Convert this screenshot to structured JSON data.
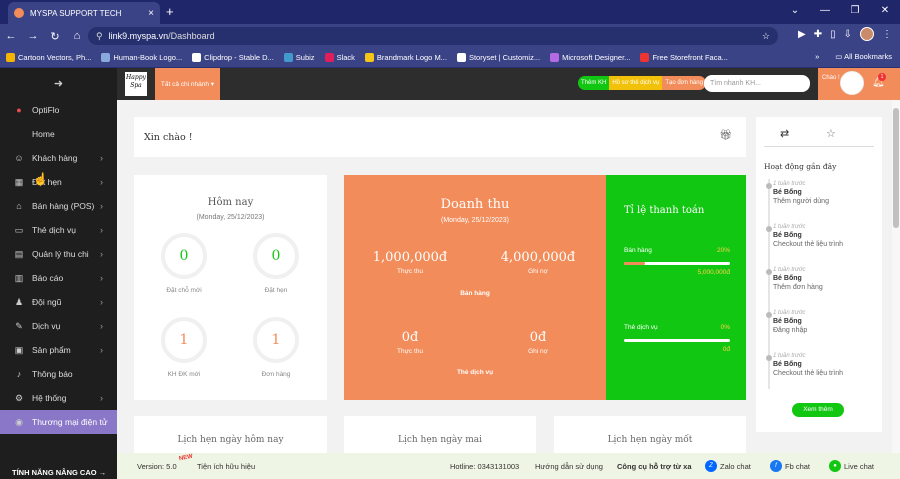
{
  "browser": {
    "tab_title": "MYSPA SUPPORT TECH",
    "url_host": "link9.myspa.vn",
    "url_path": "/Dashboard",
    "bookmarks": [
      {
        "label": "Cartoon Vectors, Ph...",
        "color": "#f4b400"
      },
      {
        "label": "Human-Book Logo...",
        "color": "#8ad"
      },
      {
        "label": "Clipdrop - Stable D...",
        "color": "#fff"
      },
      {
        "label": "Subiz",
        "color": "#49c"
      },
      {
        "label": "Slack",
        "color": "#e01e5a"
      },
      {
        "label": "Brandmark Logo M...",
        "color": "#f5c518"
      },
      {
        "label": "Storyset | Customiz...",
        "color": "#fff"
      },
      {
        "label": "Microsoft Designer...",
        "color": "#b36ae2"
      },
      {
        "label": "Free Storefront Faca...",
        "color": "#e33"
      }
    ],
    "all_bookmarks": "All Bookmarks",
    "more_bookmarks": "»"
  },
  "sidebar": {
    "items": [
      {
        "label": "OptiFlo",
        "icon": "●"
      },
      {
        "label": "Home",
        "icon": ""
      },
      {
        "label": "Khách hàng",
        "icon": "☺",
        "chev": "›"
      },
      {
        "label": "Đặt hẹn",
        "icon": "▦",
        "chev": "›"
      },
      {
        "label": "Bán hàng (POS)",
        "icon": "⌂",
        "chev": "›"
      },
      {
        "label": "Thẻ dịch vụ",
        "icon": "▭",
        "chev": "›"
      },
      {
        "label": "Quản lý thu chi",
        "icon": "▤",
        "chev": "›"
      },
      {
        "label": "Báo cáo",
        "icon": "▥",
        "chev": "›"
      },
      {
        "label": "Đội ngũ",
        "icon": "♟",
        "chev": "›"
      },
      {
        "label": "Dịch vụ",
        "icon": "✎",
        "chev": "›"
      },
      {
        "label": "Sản phẩm",
        "icon": "▣",
        "chev": "›"
      },
      {
        "label": "Thông báo",
        "icon": "♪",
        "chev": ""
      },
      {
        "label": "Hệ thống",
        "icon": "⚙",
        "chev": "›"
      },
      {
        "label": "Thương mại điện tử",
        "icon": "◉",
        "chev": ""
      }
    ],
    "footer": "TÍNH NĂNG NÂNG CAO →"
  },
  "header": {
    "logo_text": "Happy Spa",
    "branch": "Tất cả chi nhánh ▾",
    "btn_add_customer": "Thêm KH",
    "btn_checkin": "Hồ sơ thẻ dịch vụ",
    "btn_order": "Tạo đơn hàng",
    "search_placeholder": "Tìm nhanh KH...",
    "hello": "Chào !",
    "notif_count": "1"
  },
  "greeting": "Xin chào !",
  "today": {
    "title": "Hôm nay",
    "date": "(Monday, 25/12/2023)",
    "stats": [
      {
        "value": "0",
        "label": "Đặt chỗ mới"
      },
      {
        "value": "0",
        "label": "Đặt hẹn"
      },
      {
        "value": "1",
        "label": "KH ĐK mới"
      },
      {
        "value": "1",
        "label": "Đơn hàng"
      }
    ]
  },
  "revenue": {
    "title": "Doanh thu",
    "date": "(Monday, 25/12/2023)",
    "sales_actual": "1,000,000đ",
    "sales_actual_label": "Thực thu",
    "sales_debt": "4,000,000đ",
    "sales_debt_label": "Ghi nợ",
    "sales_section": "Bán hàng",
    "service_actual": "0đ",
    "service_actual_label": "Thực thu",
    "service_debt": "0đ",
    "service_debt_label": "Ghi nợ",
    "service_section": "Thẻ dịch vụ"
  },
  "ratio": {
    "title": "Tỉ lệ thanh toán",
    "sales_label": "Bán hàng",
    "sales_pct": "20%",
    "sales_fraction": 0.2,
    "sales_amount": "5,000,000đ",
    "service_label": "Thẻ dịch vụ",
    "service_pct": "0%",
    "service_fraction": 0,
    "service_amount": "0đ"
  },
  "activity": {
    "title": "Hoạt động gần đây",
    "items": [
      {
        "ago": "1 tuần trước",
        "who": "Bé Bống",
        "what": "Thêm người dùng"
      },
      {
        "ago": "1 tuần trước",
        "who": "Bé Bống",
        "what": "Checkout thẻ liệu trình"
      },
      {
        "ago": "1 tuần trước",
        "who": "Bé Bống",
        "what": "Thêm đơn hàng"
      },
      {
        "ago": "1 tuần trước",
        "who": "Bé Bống",
        "what": "Đăng nhập"
      },
      {
        "ago": "1 tuần trước",
        "who": "Bé Bống",
        "what": "Checkout thẻ liệu trình"
      }
    ],
    "more": "Xem thêm"
  },
  "bottom_cards": {
    "today": "Lịch hẹn ngày hôm nay",
    "tomorrow": "Lịch hẹn ngày mai",
    "next": "Lịch hẹn ngày mốt"
  },
  "footer": {
    "version": "Version: 5.0",
    "new_badge": "NEW",
    "utility": "Tiện ích hữu hiệu",
    "hotline": "Hotline: 0343131003",
    "guide": "Hướng dẫn sử dụng",
    "remote": "Công cụ hỗ trợ từ xa",
    "zalo": "Zalo chat",
    "fb": "Fb chat",
    "live": "Live chat"
  },
  "colors": {
    "accent": "#f28c5a",
    "green": "#12c712",
    "sidebar_active": "#8b77c8"
  }
}
